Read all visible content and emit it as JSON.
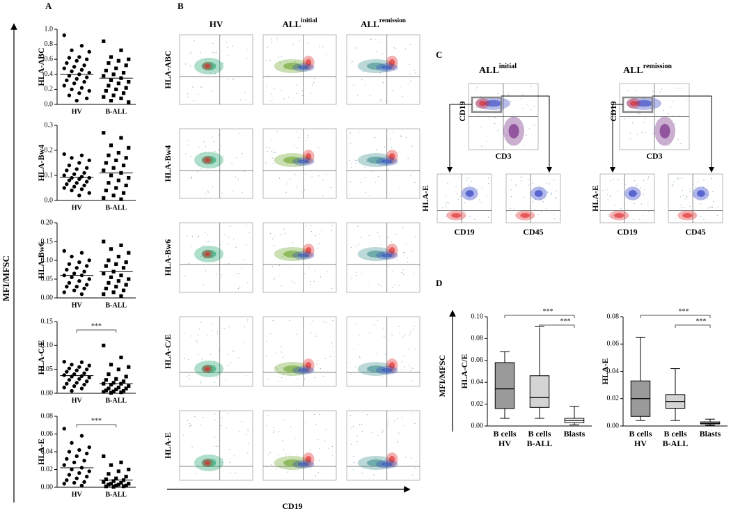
{
  "panel_a": {
    "label": "A",
    "y_label": "MFI/MFSC"
  },
  "panel_b": {
    "label": "B",
    "columns": [
      {
        "text": "HV"
      },
      {
        "text": "ALL",
        "sup": "initial"
      },
      {
        "text": "ALL",
        "sup": "remission"
      }
    ],
    "rows": [
      "HLA-ABC",
      "HLA-Bw4",
      "HLA-Bw6",
      "HLA-C/E",
      "HLA-E"
    ],
    "x_label": "CD19"
  },
  "panel_c": {
    "label": "C",
    "panels": [
      {
        "text": "ALL",
        "sup": "initial",
        "gate_x": "CD3",
        "gate_y": "CD19",
        "sub_y": "HLA-E",
        "sub_x": [
          "CD19",
          "CD45"
        ]
      },
      {
        "text": "ALL",
        "sup": "remission",
        "gate_x": "CD3",
        "gate_y": "CD19",
        "sub_y": "HLA-E",
        "sub_x": [
          "CD19",
          "CD45"
        ]
      }
    ]
  },
  "panel_d": {
    "label": "D",
    "y_label": "MFI/MFSC"
  },
  "chart_data": [
    {
      "type": "dotplot",
      "y_label": "HLA-ABC",
      "categories": [
        "HV",
        "B-ALL"
      ],
      "markers": [
        "circle",
        "square"
      ],
      "color": "#000000",
      "values": [
        [
          0.92,
          0.78,
          0.72,
          0.7,
          0.63,
          0.62,
          0.6,
          0.58,
          0.55,
          0.52,
          0.5,
          0.48,
          0.46,
          0.44,
          0.42,
          0.4,
          0.38,
          0.36,
          0.34,
          0.32,
          0.3,
          0.28,
          0.25,
          0.22,
          0.2,
          0.18,
          0.15,
          0.12,
          0.08,
          0.05
        ],
        [
          0.84,
          0.72,
          0.63,
          0.6,
          0.58,
          0.55,
          0.52,
          0.48,
          0.45,
          0.42,
          0.4,
          0.38,
          0.35,
          0.32,
          0.3,
          0.28,
          0.25,
          0.22,
          0.2,
          0.18,
          0.15,
          0.12,
          0.1,
          0.08,
          0.05,
          0.03
        ]
      ],
      "medians": [
        0.4,
        0.35
      ],
      "ylim": [
        0,
        1.0
      ],
      "yticks": [
        {
          "value": 0,
          "label": "0.0"
        },
        0.2,
        0.4,
        0.6,
        0.8,
        {
          "value": 1.0,
          "label": "1.0"
        }
      ]
    },
    {
      "type": "dotplot",
      "y_label": "HLA-Bw4",
      "categories": [
        "HV",
        "B-ALL"
      ],
      "markers": [
        "circle",
        "square"
      ],
      "color": "#000000",
      "values": [
        [
          0.185,
          0.18,
          0.17,
          0.16,
          0.15,
          0.14,
          0.13,
          0.125,
          0.12,
          0.11,
          0.105,
          0.1,
          0.095,
          0.09,
          0.09,
          0.085,
          0.08,
          0.075,
          0.07,
          0.065,
          0.06,
          0.055,
          0.05,
          0.045,
          0.04,
          0.03,
          0.02
        ],
        [
          0.27,
          0.25,
          0.22,
          0.21,
          0.19,
          0.18,
          0.17,
          0.16,
          0.15,
          0.14,
          0.13,
          0.12,
          0.11,
          0.1,
          0.09,
          0.08,
          0.07,
          0.06,
          0.05,
          0.04,
          0.03,
          0.02,
          0.01,
          0.005
        ]
      ],
      "medians": [
        0.093,
        0.11
      ],
      "ylim": [
        0,
        0.3
      ],
      "yticks": [
        {
          "value": 0,
          "label": "0.0"
        },
        0.1,
        0.2,
        0.3
      ]
    },
    {
      "type": "dotplot",
      "y_label": "HLA-Bw6",
      "categories": [
        "HV",
        "B-ALL"
      ],
      "markers": [
        "circle",
        "square"
      ],
      "color": "#000000",
      "values": [
        [
          0.125,
          0.12,
          0.11,
          0.1,
          0.095,
          0.09,
          0.085,
          0.08,
          0.075,
          0.07,
          0.065,
          0.06,
          0.06,
          0.055,
          0.05,
          0.045,
          0.04,
          0.035,
          0.03,
          0.03,
          0.025,
          0.02,
          0.015,
          0.01
        ],
        [
          0.15,
          0.14,
          0.13,
          0.12,
          0.11,
          0.1,
          0.095,
          0.09,
          0.085,
          0.08,
          0.07,
          0.065,
          0.06,
          0.055,
          0.05,
          0.045,
          0.04,
          0.035,
          0.03,
          0.025,
          0.02,
          0.015,
          0.01,
          0.005
        ]
      ],
      "medians": [
        0.06,
        0.07
      ],
      "ylim": [
        0,
        0.2
      ],
      "yticks": [
        {
          "value": 0,
          "label": "0.00"
        },
        0.05,
        {
          "value": 0.1,
          "label": "0.10"
        },
        0.15,
        {
          "value": 0.2,
          "label": "0.20"
        }
      ]
    },
    {
      "type": "dotplot",
      "y_label": "HLA-C/E",
      "categories": [
        "HV",
        "B-ALL"
      ],
      "markers": [
        "circle",
        "square"
      ],
      "color": "#000000",
      "values": [
        [
          0.066,
          0.065,
          0.06,
          0.058,
          0.055,
          0.052,
          0.05,
          0.048,
          0.045,
          0.042,
          0.04,
          0.038,
          0.036,
          0.035,
          0.033,
          0.03,
          0.028,
          0.025,
          0.022,
          0.02,
          0.018,
          0.015,
          0.012,
          0.01,
          0.005
        ],
        [
          0.1,
          0.075,
          0.06,
          0.055,
          0.05,
          0.04,
          0.035,
          0.03,
          0.028,
          0.025,
          0.022,
          0.02,
          0.02,
          0.018,
          0.015,
          0.012,
          0.01,
          0.01,
          0.008,
          0.006,
          0.005,
          0.004,
          0.003,
          0.002,
          0.001
        ]
      ],
      "medians": [
        0.037,
        0.02
      ],
      "annotations": [
        "***"
      ],
      "ylim": [
        0,
        0.15
      ],
      "yticks": [
        {
          "value": 0,
          "label": "0.00"
        },
        0.05,
        {
          "value": 0.1,
          "label": "0.10"
        },
        0.15
      ]
    },
    {
      "type": "dotplot",
      "y_label": "HLA-E",
      "categories": [
        "HV",
        "B-ALL"
      ],
      "markers": [
        "circle",
        "square"
      ],
      "color": "#000000",
      "values": [
        [
          0.066,
          0.058,
          0.05,
          0.045,
          0.042,
          0.04,
          0.038,
          0.035,
          0.032,
          0.03,
          0.028,
          0.025,
          0.022,
          0.02,
          0.018,
          0.016,
          0.014,
          0.012,
          0.01,
          0.008,
          0.006,
          0.005,
          0.004,
          0.002
        ],
        [
          0.035,
          0.028,
          0.025,
          0.02,
          0.018,
          0.015,
          0.012,
          0.01,
          0.009,
          0.008,
          0.007,
          0.006,
          0.005,
          0.004,
          0.004,
          0.003,
          0.003,
          0.002,
          0.002,
          0.001,
          0.001,
          0.0005
        ]
      ],
      "medians": [
        0.022,
        0.008
      ],
      "annotations": [
        "***"
      ],
      "ylim": [
        0,
        0.08
      ],
      "yticks": [
        {
          "value": 0,
          "label": "0.00"
        },
        0.02,
        0.04,
        0.06,
        0.08
      ]
    },
    {
      "type": "box",
      "y_label": "HLA-C/E",
      "categories": [
        [
          "B cells",
          "HV"
        ],
        [
          "B cells",
          "B-ALL"
        ],
        [
          "Blasts"
        ]
      ],
      "colors": [
        "#9a9a9a",
        "#d4d4d4",
        "#ffffff"
      ],
      "boxes": [
        {
          "min": 0.007,
          "q1": 0.016,
          "median": 0.034,
          "q3": 0.058,
          "max": 0.068
        },
        {
          "min": 0.007,
          "q1": 0.017,
          "median": 0.026,
          "q3": 0.046,
          "max": 0.091
        },
        {
          "min": 0.001,
          "q1": 0.003,
          "median": 0.005,
          "q3": 0.007,
          "max": 0.018
        }
      ],
      "annotations": [
        "***",
        "***"
      ],
      "ylim": [
        0,
        0.1
      ],
      "yticks": [
        {
          "value": 0,
          "label": "0.00"
        },
        0.02,
        0.04,
        0.06,
        0.08,
        {
          "value": 0.1,
          "label": "0.10"
        }
      ]
    },
    {
      "type": "box",
      "y_label": "HLA-E",
      "categories": [
        [
          "B cells",
          "HV"
        ],
        [
          "B cells",
          "B-ALL"
        ],
        [
          "Blasts"
        ]
      ],
      "colors": [
        "#9a9a9a",
        "#d4d4d4",
        "#ffffff"
      ],
      "boxes": [
        {
          "min": 0.004,
          "q1": 0.007,
          "median": 0.02,
          "q3": 0.033,
          "max": 0.065
        },
        {
          "min": 0.004,
          "q1": 0.013,
          "median": 0.018,
          "q3": 0.023,
          "max": 0.042
        },
        {
          "min": 0.0005,
          "q1": 0.0015,
          "median": 0.002,
          "q3": 0.003,
          "max": 0.005
        }
      ],
      "annotations": [
        "***",
        "***"
      ],
      "ylim": [
        0,
        0.08
      ],
      "yticks": [
        {
          "value": 0,
          "label": "0.00"
        },
        0.02,
        0.04,
        0.06,
        0.08
      ]
    }
  ]
}
